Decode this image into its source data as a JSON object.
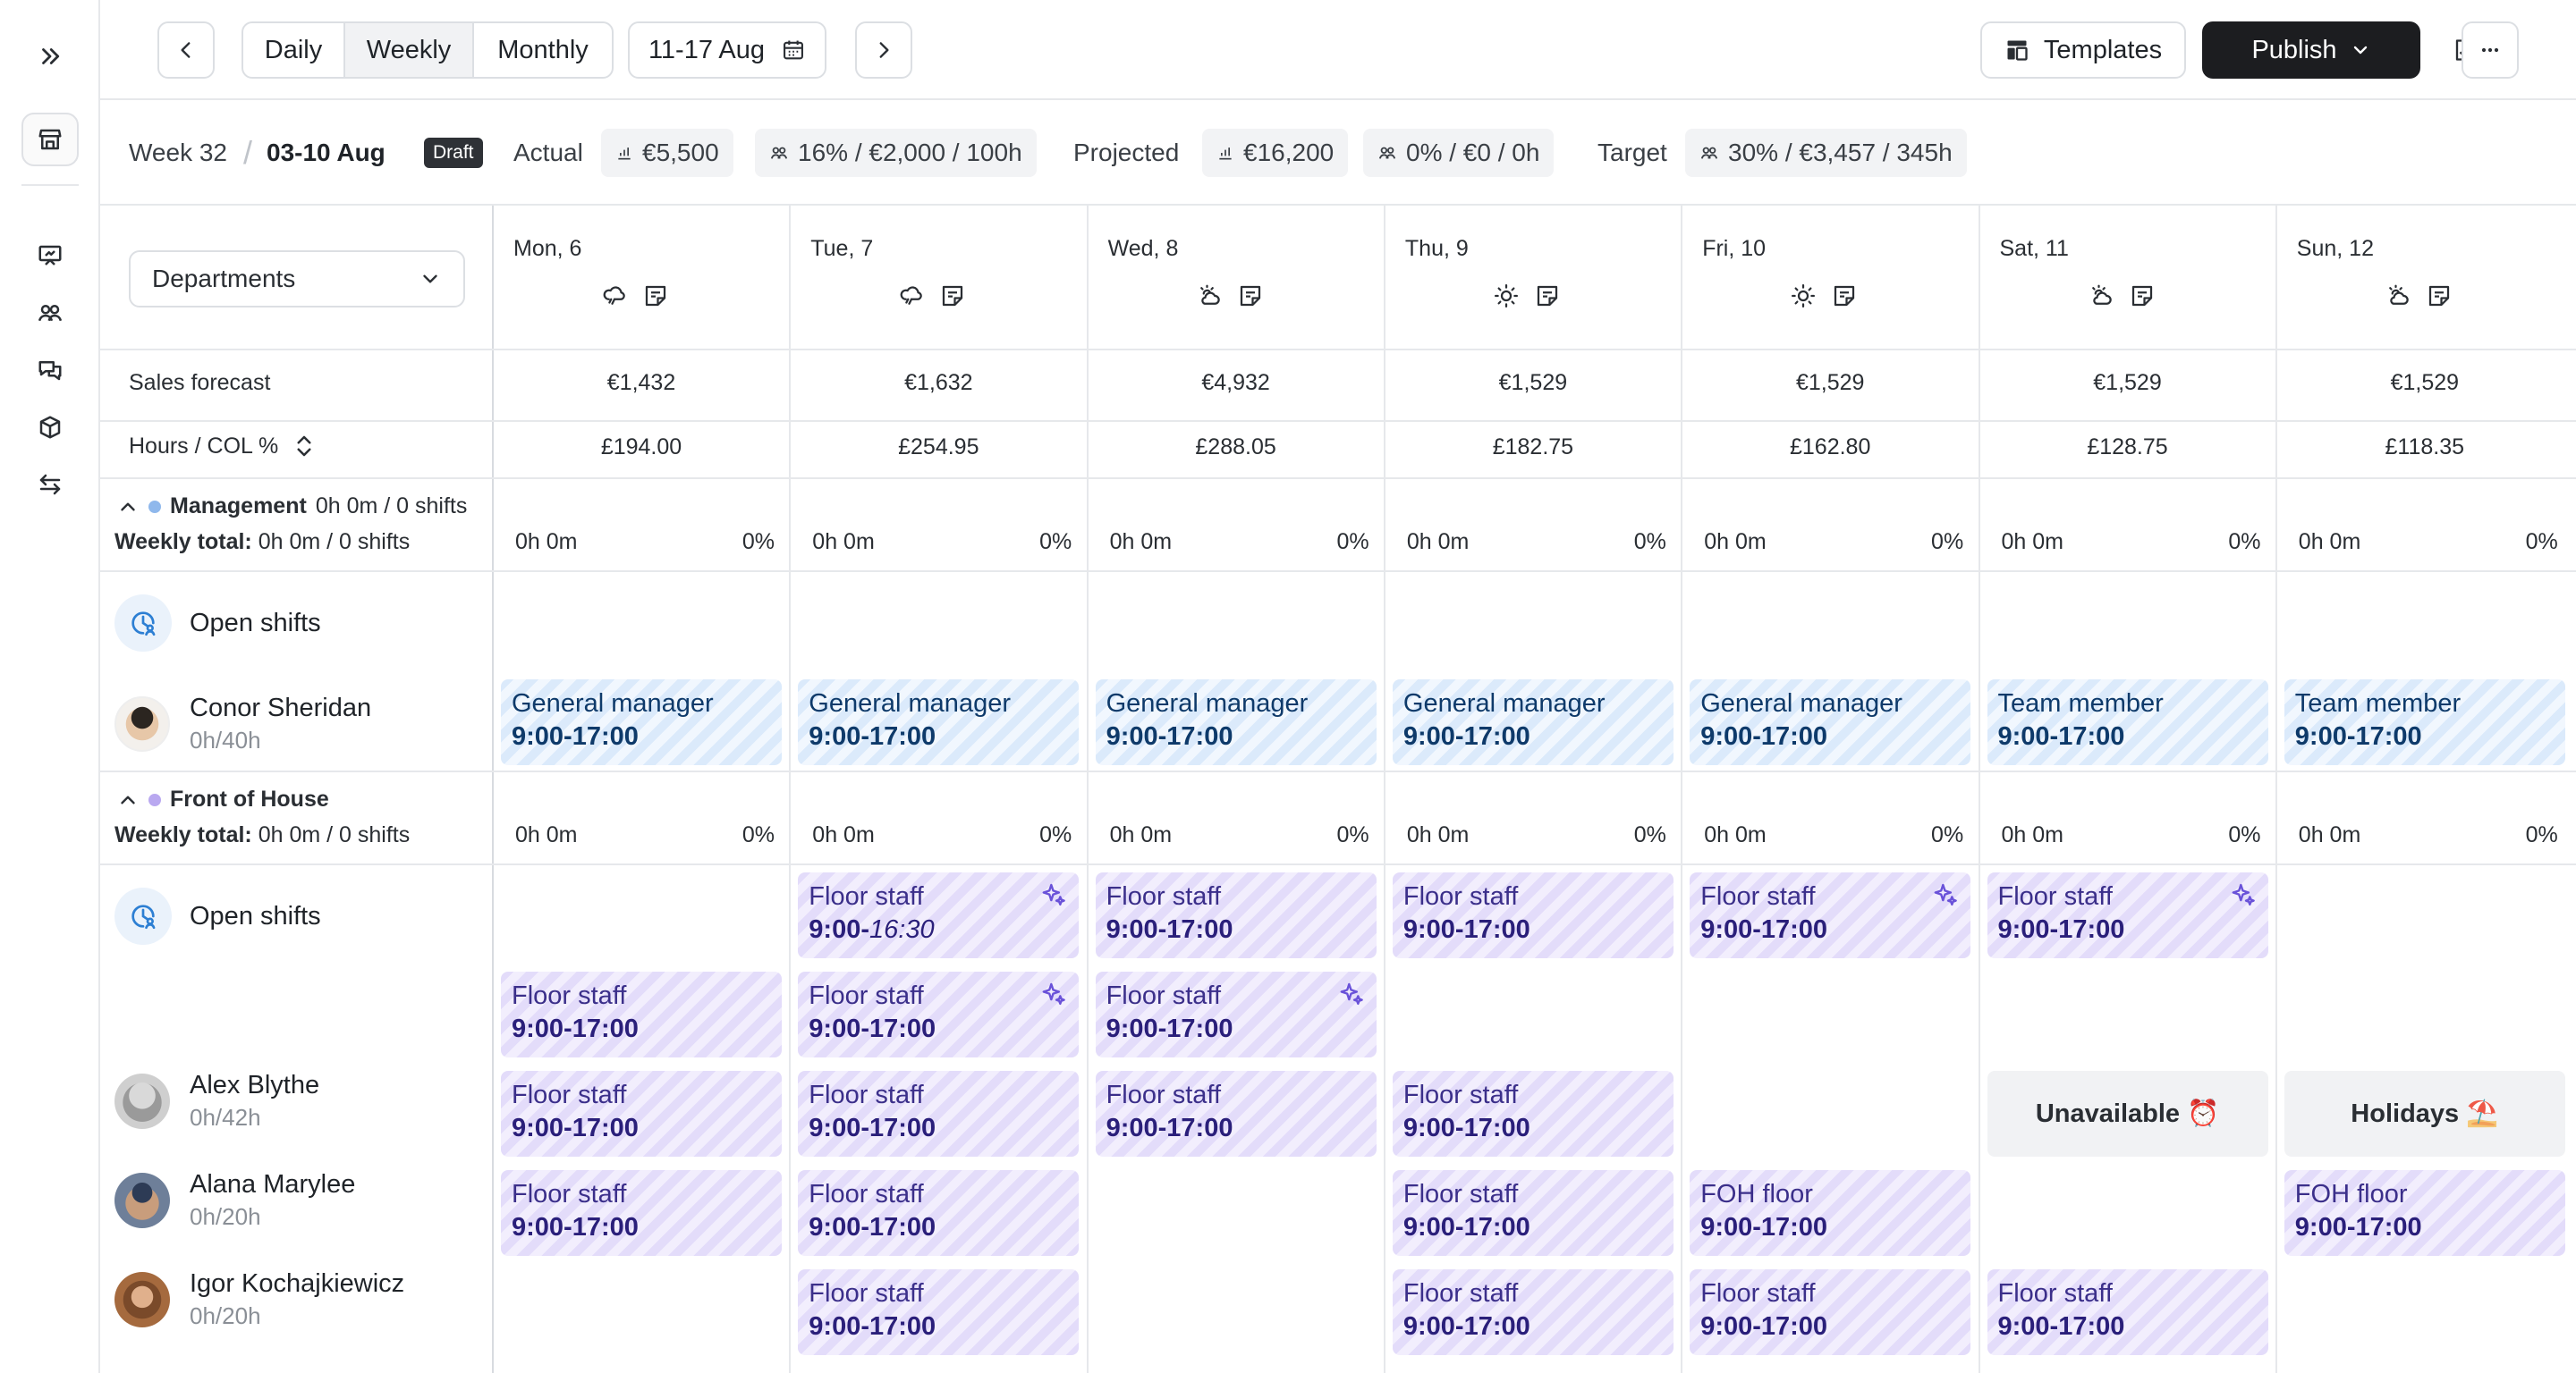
{
  "toolbar": {
    "views": [
      "Daily",
      "Weekly",
      "Monthly"
    ],
    "active_view": "Weekly",
    "date_range": "11-17 Aug",
    "templates_label": "Templates",
    "publish_label": "Publish"
  },
  "summary": {
    "week_label": "Week 32",
    "week_range": "03-10 Aug",
    "status_badge": "Draft",
    "actual_label": "Actual",
    "actual_sales": "€5,500",
    "actual_labour": "16% / €2,000 / 100h",
    "projected_label": "Projected",
    "projected_sales": "€16,200",
    "projected_labour": "0% / €0 / 0h",
    "target_label": "Target",
    "target_labour": "30% / €3,457 / 345h"
  },
  "grid": {
    "department_select": "Departments",
    "sales_forecast_label": "Sales forecast",
    "hours_col_label": "Hours / COL %",
    "days": [
      {
        "name": "Mon, 6",
        "weather": "cloud-rain-icon",
        "forecast": "€1,432",
        "hours": "£194.00"
      },
      {
        "name": "Tue, 7",
        "weather": "cloud-rain-icon",
        "forecast": "€1,632",
        "hours": "£254.95"
      },
      {
        "name": "Wed, 8",
        "weather": "cloud-sun-icon",
        "forecast": "€4,932",
        "hours": "£288.05"
      },
      {
        "name": "Thu, 9",
        "weather": "sun-icon",
        "forecast": "€1,529",
        "hours": "£182.75"
      },
      {
        "name": "Fri, 10",
        "weather": "sun-icon",
        "forecast": "€1,529",
        "hours": "£162.80"
      },
      {
        "name": "Sat, 11",
        "weather": "cloud-sun-icon",
        "forecast": "€1,529",
        "hours": "£128.75"
      },
      {
        "name": "Sun, 12",
        "weather": "cloud-sun-icon",
        "forecast": "€1,529",
        "hours": "£118.35"
      }
    ]
  },
  "groups": [
    {
      "name": "Management",
      "summary": "0h 0m / 0 shifts",
      "color": "#8fb8ec",
      "weekly_label": "Weekly total:",
      "weekly_value": "0h 0m / 0 shifts",
      "day_hours": "0h 0m",
      "day_pct": "0%",
      "open_shifts_label": "Open shifts",
      "people": [
        {
          "name": "Conor Sheridan",
          "hours": "0h/40h"
        }
      ],
      "shifts": [
        {
          "day": 0,
          "row": 1,
          "role": "General manager",
          "time": "9:00-17:00"
        },
        {
          "day": 1,
          "row": 1,
          "role": "General manager",
          "time": "9:00-17:00"
        },
        {
          "day": 2,
          "row": 1,
          "role": "General manager",
          "time": "9:00-17:00"
        },
        {
          "day": 3,
          "row": 1,
          "role": "General manager",
          "time": "9:00-17:00"
        },
        {
          "day": 4,
          "row": 1,
          "role": "General manager",
          "time": "9:00-17:00"
        },
        {
          "day": 5,
          "row": 1,
          "role": "Team member",
          "time": "9:00-17:00"
        },
        {
          "day": 6,
          "row": 1,
          "role": "Team member",
          "time": "9:00-17:00"
        }
      ]
    },
    {
      "name": "Front of House",
      "summary": "",
      "color": "#b9a8f0",
      "weekly_label": "Weekly total:",
      "weekly_value": "0h 0m / 0 shifts",
      "day_hours": "0h 0m",
      "day_pct": "0%",
      "open_shifts_label": "Open shifts",
      "people": [
        {
          "name": "Alex Blythe",
          "hours": "0h/42h"
        },
        {
          "name": "Alana Marylee",
          "hours": "0h/20h"
        },
        {
          "name": "Igor Kochajkiewicz",
          "hours": "0h/20h"
        }
      ],
      "shifts": [
        {
          "day": 1,
          "row": 0,
          "role": "Floor staff",
          "time_start": "9:00-",
          "time_end": "16:30",
          "sparkle": true
        },
        {
          "day": 2,
          "row": 0,
          "role": "Floor staff",
          "time": "9:00-17:00"
        },
        {
          "day": 3,
          "row": 0,
          "role": "Floor staff",
          "time": "9:00-17:00"
        },
        {
          "day": 4,
          "row": 0,
          "role": "Floor staff",
          "time": "9:00-17:00",
          "sparkle": true
        },
        {
          "day": 5,
          "row": 0,
          "role": "Floor staff",
          "time": "9:00-17:00",
          "sparkle": true
        },
        {
          "day": 0,
          "row": 1,
          "role": "Floor staff",
          "time": "9:00-17:00"
        },
        {
          "day": 1,
          "row": 1,
          "role": "Floor staff",
          "time": "9:00-17:00",
          "sparkle": true
        },
        {
          "day": 2,
          "row": 1,
          "role": "Floor staff",
          "time": "9:00-17:00",
          "sparkle": true
        },
        {
          "day": 0,
          "row": 2,
          "role": "Floor staff",
          "time": "9:00-17:00"
        },
        {
          "day": 1,
          "row": 2,
          "role": "Floor staff",
          "time": "9:00-17:00"
        },
        {
          "day": 2,
          "row": 2,
          "role": "Floor staff",
          "time": "9:00-17:00"
        },
        {
          "day": 3,
          "row": 2,
          "role": "Floor staff",
          "time": "9:00-17:00"
        },
        {
          "day": 0,
          "row": 3,
          "role": "Floor staff",
          "time": "9:00-17:00"
        },
        {
          "day": 1,
          "row": 3,
          "role": "Floor staff",
          "time": "9:00-17:00"
        },
        {
          "day": 3,
          "row": 3,
          "role": "Floor staff",
          "time": "9:00-17:00"
        },
        {
          "day": 4,
          "row": 3,
          "role": "FOH floor",
          "time": "9:00-17:00"
        },
        {
          "day": 6,
          "row": 3,
          "role": "FOH floor",
          "time": "9:00-17:00"
        },
        {
          "day": 1,
          "row": 4,
          "role": "Floor staff",
          "time": "9:00-17:00"
        },
        {
          "day": 3,
          "row": 4,
          "role": "Floor staff",
          "time": "9:00-17:00"
        },
        {
          "day": 4,
          "row": 4,
          "role": "Floor staff",
          "time": "9:00-17:00"
        },
        {
          "day": 5,
          "row": 4,
          "role": "Floor staff",
          "time": "9:00-17:00"
        }
      ],
      "statuses": [
        {
          "day": 5,
          "row": 2,
          "label": "Unavailable",
          "emoji": "⏰"
        },
        {
          "day": 6,
          "row": 2,
          "label": "Holidays",
          "emoji": "⛱️"
        }
      ]
    }
  ]
}
